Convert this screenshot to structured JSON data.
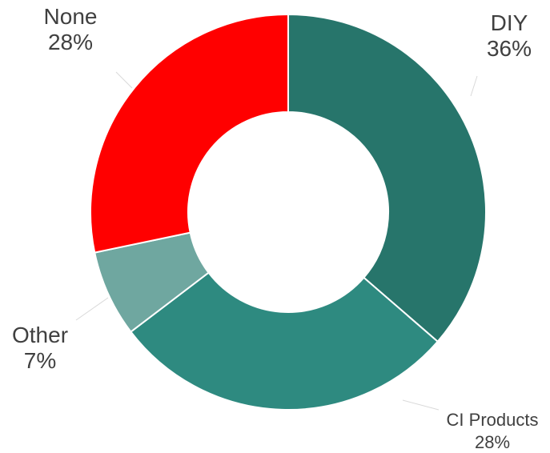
{
  "chart_data": {
    "type": "pie",
    "style": "donut",
    "slices": [
      {
        "label": "DIY",
        "percent_label": "36%",
        "value": 36,
        "color": "#27756b"
      },
      {
        "label": "CI Products",
        "percent_label": "28%",
        "value": 28,
        "color": "#2e8a80"
      },
      {
        "label": "Other",
        "percent_label": "7%",
        "value": 7,
        "color": "#6fa7a0"
      },
      {
        "label": "None",
        "percent_label": "28%",
        "value": 28,
        "color": "#ff0000"
      }
    ],
    "start_angle": "top",
    "direction": "clockwise",
    "legend": "none"
  }
}
